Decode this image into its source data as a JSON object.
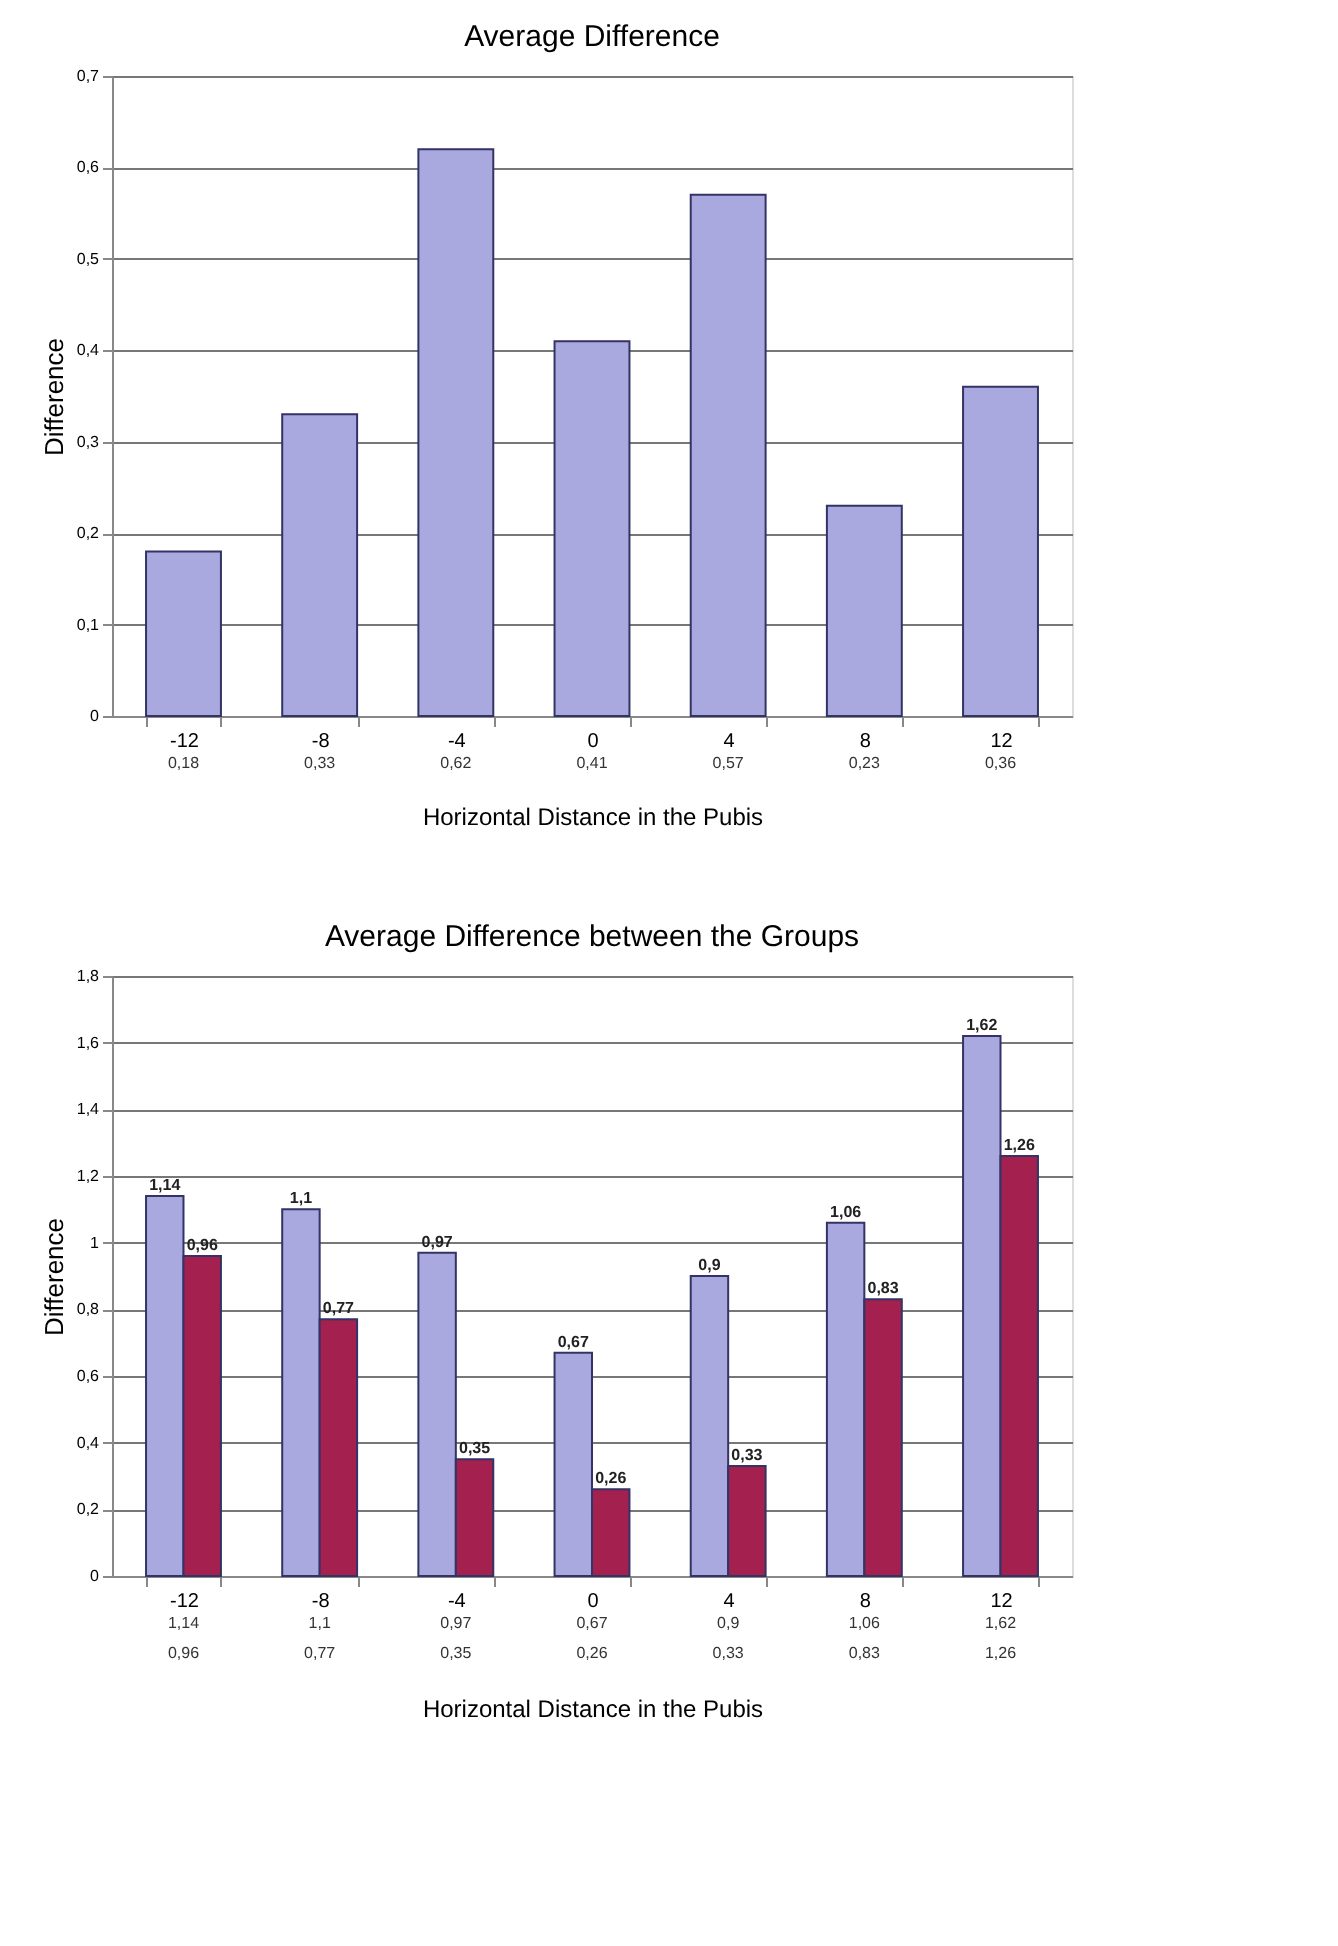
{
  "chart_data": [
    {
      "type": "bar",
      "title": "Average Difference",
      "xlabel": "Horizontal Distance in the Pubis",
      "ylabel": "Difference",
      "categories": [
        "-12",
        "-8",
        "-4",
        "0",
        "4",
        "8",
        "12"
      ],
      "values": [
        0.18,
        0.33,
        0.62,
        0.41,
        0.57,
        0.23,
        0.36
      ],
      "color": "#a9a9e0",
      "value_labels": [
        "0,18",
        "0,33",
        "0,62",
        "0,41",
        "0,57",
        "0,23",
        "0,36"
      ],
      "ylim": [
        0,
        0.7
      ],
      "yticks": [
        {
          "value": 0,
          "label": "0"
        },
        {
          "value": 0.1,
          "label": "0,1"
        },
        {
          "value": 0.2,
          "label": "0,2"
        },
        {
          "value": 0.3,
          "label": "0,3"
        },
        {
          "value": 0.4,
          "label": "0,4"
        },
        {
          "value": 0.5,
          "label": "0,5"
        },
        {
          "value": 0.6,
          "label": "0,6"
        },
        {
          "value": 0.7,
          "label": "0,7"
        }
      ],
      "grid": "y"
    },
    {
      "type": "bar",
      "title": "Average Difference between the Groups",
      "xlabel": "Horizontal Distance in the Pubis",
      "ylabel": "Difference",
      "categories": [
        "-12",
        "-8",
        "-4",
        "0",
        "4",
        "8",
        "12"
      ],
      "series": [
        {
          "color": "#a9a9e0",
          "values": [
            1.14,
            1.1,
            0.97,
            0.67,
            0.9,
            1.06,
            1.62
          ],
          "value_labels": [
            "1,14",
            "1,1",
            "0,97",
            "0,67",
            "0,9",
            "1,06",
            "1,62"
          ]
        },
        {
          "color": "#a3204f",
          "values": [
            0.96,
            0.77,
            0.35,
            0.26,
            0.33,
            0.83,
            1.26
          ],
          "value_labels": [
            "0,96",
            "0,77",
            "0,35",
            "0,26",
            "0,33",
            "0,83",
            "1,26"
          ]
        }
      ],
      "ylim": [
        0,
        1.8
      ],
      "yticks": [
        {
          "value": 0,
          "label": "0"
        },
        {
          "value": 0.2,
          "label": "0,2"
        },
        {
          "value": 0.4,
          "label": "0,4"
        },
        {
          "value": 0.6,
          "label": "0,6"
        },
        {
          "value": 0.8,
          "label": "0,8"
        },
        {
          "value": 1,
          "label": "1"
        },
        {
          "value": 1.2,
          "label": "1,2"
        },
        {
          "value": 1.4,
          "label": "1,4"
        },
        {
          "value": 1.6,
          "label": "1,6"
        },
        {
          "value": 1.8,
          "label": "1,8"
        }
      ],
      "grid": "y"
    }
  ]
}
